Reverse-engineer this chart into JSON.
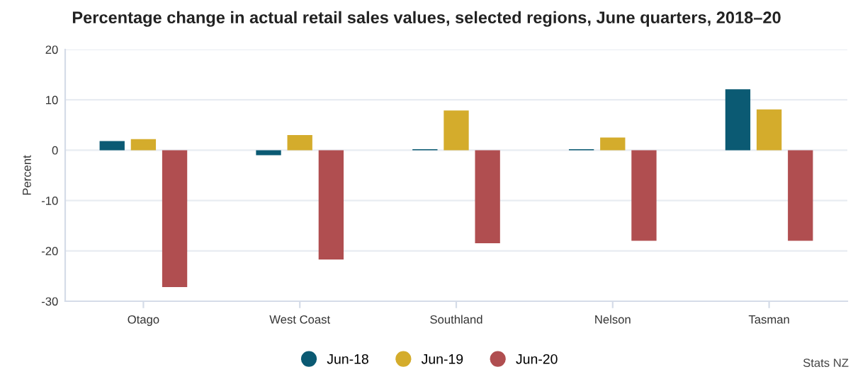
{
  "chart_data": {
    "type": "bar",
    "title": "Percentage change in actual retail sales values, selected regions, June quarters, 2018–20",
    "ylabel": "Percent",
    "categories": [
      "Otago",
      "West Coast",
      "Southland",
      "Nelson",
      "Tasman"
    ],
    "series": [
      {
        "name": "Jun-18",
        "color": "#0b5a73",
        "values": [
          1.8,
          -1.0,
          0.2,
          0.2,
          12.1
        ]
      },
      {
        "name": "Jun-19",
        "color": "#d4ac2c",
        "values": [
          2.2,
          3.0,
          7.9,
          2.5,
          8.1
        ]
      },
      {
        "name": "Jun-20",
        "color": "#b04e50",
        "values": [
          -27.2,
          -21.7,
          -18.5,
          -18.0,
          -18.0
        ]
      }
    ],
    "ylim": [
      -30,
      20
    ],
    "yticks": [
      -30,
      -20,
      -10,
      0,
      10,
      20
    ],
    "grid": "y",
    "legend": "bottom",
    "annotations": [
      "Stats NZ"
    ]
  }
}
